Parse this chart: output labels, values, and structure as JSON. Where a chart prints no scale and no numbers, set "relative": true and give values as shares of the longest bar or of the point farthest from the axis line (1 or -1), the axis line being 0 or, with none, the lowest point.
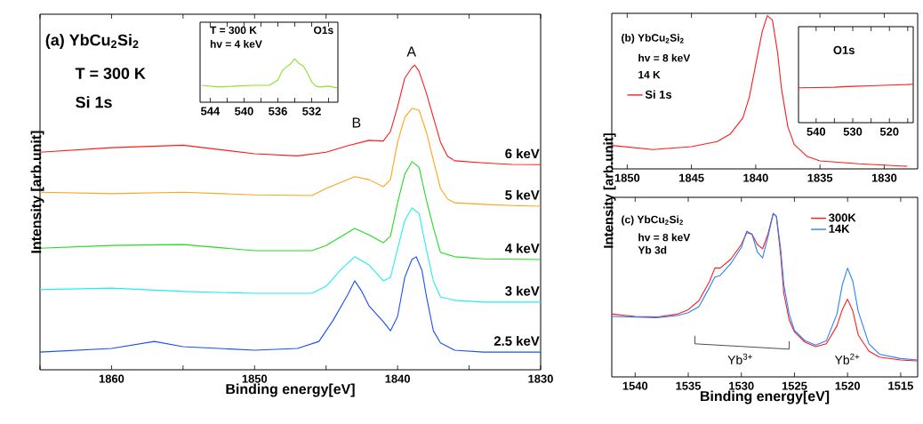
{
  "chart_data": [
    {
      "type": "line",
      "relative": true,
      "title": "(a) YbCu$_{2}$Si$_{2}$",
      "xlabel": "Binding energy[eV]",
      "ylabel": "Intensity [arb.unit]",
      "xlim": [
        1865,
        1830
      ],
      "xticks": [
        {
          "value": 1865,
          "label": null
        },
        1860,
        {
          "value": 1855,
          "label": null
        },
        1850,
        {
          "value": 1845,
          "label": null
        },
        1840,
        {
          "value": 1835,
          "label": null
        },
        1830
      ],
      "annotations": [
        "T = 300 K",
        "Si 1s",
        "A",
        "B"
      ],
      "series": [
        {
          "name": "6 keV",
          "color": "#ff1a1a",
          "x": [
            1865,
            1860,
            1855,
            1850,
            1847,
            1845,
            1843.5,
            1842,
            1841,
            1840.5,
            1840,
            1839.5,
            1839,
            1838.8,
            1838.5,
            1838,
            1837.5,
            1837,
            1836.5,
            1836,
            1834,
            1832,
            1830
          ],
          "values": [
            0.714,
            0.729,
            0.737,
            0.709,
            0.702,
            0.714,
            0.735,
            0.753,
            0.751,
            0.782,
            0.863,
            0.957,
            0.992,
            1.0,
            0.98,
            0.91,
            0.828,
            0.747,
            0.7,
            0.686,
            0.679,
            0.674,
            0.673
          ]
        },
        {
          "name": "5 keV",
          "color": "#ffa41a",
          "x": [
            1865,
            1860,
            1855,
            1850,
            1846,
            1845,
            1843,
            1842,
            1841,
            1840.5,
            1840,
            1839.5,
            1839,
            1838.5,
            1838,
            1837.5,
            1837,
            1836.5,
            1836,
            1834,
            1832,
            1830
          ],
          "values": [
            0.583,
            0.578,
            0.583,
            0.574,
            0.572,
            0.595,
            0.634,
            0.624,
            0.601,
            0.624,
            0.747,
            0.828,
            0.858,
            0.852,
            0.782,
            0.688,
            0.595,
            0.56,
            0.548,
            0.543,
            0.539,
            0.537
          ]
        },
        {
          "name": "4 keV",
          "color": "#22dd22",
          "x": [
            1865,
            1860,
            1855,
            1850,
            1846,
            1845,
            1843,
            1842,
            1841,
            1840.5,
            1840,
            1839.5,
            1839,
            1838.5,
            1838,
            1837.5,
            1837,
            1836,
            1834,
            1830
          ],
          "values": [
            0.399,
            0.408,
            0.411,
            0.391,
            0.391,
            0.408,
            0.464,
            0.443,
            0.417,
            0.438,
            0.548,
            0.642,
            0.683,
            0.665,
            0.56,
            0.467,
            0.385,
            0.371,
            0.364,
            0.362
          ]
        },
        {
          "name": "3 keV",
          "color": "#22eeee",
          "x": [
            1865,
            1860,
            1855,
            1850,
            1846,
            1845,
            1844,
            1843,
            1842,
            1841,
            1840.5,
            1840,
            1839.5,
            1839,
            1838.5,
            1838,
            1837.5,
            1837,
            1836,
            1834,
            1830
          ],
          "values": [
            0.263,
            0.268,
            0.257,
            0.251,
            0.251,
            0.274,
            0.327,
            0.371,
            0.344,
            0.292,
            0.303,
            0.397,
            0.49,
            0.531,
            0.513,
            0.397,
            0.292,
            0.239,
            0.228,
            0.222,
            0.222
          ]
        },
        {
          "name": "2.5 keV",
          "color": "#1a4dff",
          "x": [
            1865,
            1860,
            1857,
            1855,
            1850,
            1847,
            1845.5,
            1844.5,
            1843.5,
            1843,
            1842.5,
            1842,
            1841,
            1840.5,
            1840,
            1839.5,
            1839,
            1838.7,
            1838.3,
            1838,
            1837.5,
            1837,
            1836,
            1834,
            1830
          ],
          "values": [
            0.058,
            0.07,
            0.093,
            0.076,
            0.064,
            0.07,
            0.093,
            0.163,
            0.245,
            0.292,
            0.257,
            0.21,
            0.158,
            0.128,
            0.175,
            0.303,
            0.362,
            0.371,
            0.327,
            0.245,
            0.128,
            0.088,
            0.064,
            0.058,
            0.058
          ]
        }
      ]
    },
    {
      "type": "line",
      "relative": true,
      "xlim": [
        545.2,
        528.9
      ],
      "xticks": [
        544,
        {
          "value": 542,
          "label": null
        },
        540,
        {
          "value": 538,
          "label": null
        },
        536,
        {
          "value": 534,
          "label": null
        },
        532,
        {
          "value": 530,
          "label": null
        }
      ],
      "annotations": [
        "T = 300 K",
        "hv = 4 keV",
        "O1s"
      ],
      "series": [
        {
          "color": "#8fe02a",
          "x": [
            545,
            543,
            541,
            539,
            537,
            536,
            535.5,
            535,
            534.5,
            534,
            533.5,
            533,
            532.5,
            532,
            531.5,
            531,
            530,
            529
          ],
          "values": [
            0.39,
            0.35,
            0.37,
            0.39,
            0.39,
            0.51,
            0.72,
            0.81,
            0.88,
            1.0,
            0.89,
            0.84,
            0.67,
            0.47,
            0.37,
            0.35,
            0.37,
            0.33
          ]
        }
      ]
    },
    {
      "type": "line",
      "relative": true,
      "title": "(b) YbCu$_{2}$Si$_{2}$",
      "ylabel": "Intensity [arb.unit]",
      "legend": "left",
      "xlim": [
        1851.2,
        1827.4
      ],
      "xticks": [
        1850,
        1845,
        1840,
        1835,
        1830
      ],
      "annotations": [
        "hv = 8 keV",
        "14 K"
      ],
      "series": [
        {
          "name": "Si 1s",
          "color": "#ff1a1a",
          "x": [
            1851.2,
            1848,
            1845,
            1843,
            1842,
            1841,
            1840.5,
            1840,
            1839.5,
            1839.1,
            1838.7,
            1838.3,
            1838,
            1837.5,
            1837,
            1836,
            1835,
            1832,
            1828.2
          ],
          "values": [
            0.153,
            0.126,
            0.145,
            0.178,
            0.226,
            0.333,
            0.468,
            0.681,
            0.894,
            1.0,
            0.971,
            0.758,
            0.526,
            0.275,
            0.159,
            0.081,
            0.052,
            0.033,
            0.017
          ]
        }
      ]
    },
    {
      "type": "line",
      "relative": true,
      "xlim": [
        544.8,
        513.5
      ],
      "xticks": [
        540,
        {
          "value": 535,
          "label": null
        },
        530,
        {
          "value": 525,
          "label": null
        },
        520,
        {
          "value": 515,
          "label": null
        }
      ],
      "annotations": [
        "O1s"
      ],
      "series": [
        {
          "color": "#ff1a1a",
          "x": [
            544.8,
            540,
            535,
            530,
            525,
            520,
            515,
            513.5
          ],
          "values": [
            0.908,
            0.915,
            0.923,
            0.946,
            0.962,
            0.977,
            0.992,
            1.0
          ]
        }
      ]
    },
    {
      "type": "line",
      "relative": true,
      "title": "(c) YbCu$_{2}$Si$_{2}$",
      "xlabel": "Binding energy[eV]",
      "legend": "top right",
      "xlim": [
        1542.2,
        1513.4
      ],
      "xticks": [
        1540,
        1535,
        1530,
        1525,
        1520,
        1515
      ],
      "annotations": [
        "hv = 8 keV",
        "Yb 3d",
        "Yb$^{3+}$",
        "Yb$^{2+}$"
      ],
      "series": [
        {
          "name": "300K",
          "color": "#ff1a1a",
          "x": [
            1542.2,
            1540,
            1538,
            1536,
            1535,
            1534,
            1533,
            1532.5,
            1532,
            1531,
            1530,
            1529.5,
            1529,
            1528.5,
            1528,
            1527.5,
            1527,
            1526.7,
            1526.3,
            1526,
            1525.5,
            1525,
            1524,
            1523,
            1522,
            1521,
            1520.5,
            1520,
            1519.5,
            1519,
            1518,
            1517,
            1515,
            1513.4
          ],
          "values": [
            0.384,
            0.37,
            0.366,
            0.384,
            0.411,
            0.466,
            0.583,
            0.665,
            0.665,
            0.719,
            0.81,
            0.882,
            0.873,
            0.81,
            0.783,
            0.873,
            1.0,
            0.982,
            0.746,
            0.511,
            0.348,
            0.275,
            0.212,
            0.185,
            0.203,
            0.312,
            0.411,
            0.475,
            0.402,
            0.257,
            0.158,
            0.121,
            0.103,
            0.098
          ]
        },
        {
          "name": "14K",
          "color": "#2a7fff",
          "x": [
            1542.2,
            1540,
            1538,
            1536,
            1535,
            1534,
            1533,
            1532.5,
            1532,
            1531,
            1530,
            1529.5,
            1529,
            1528.5,
            1528,
            1527.5,
            1527,
            1526.7,
            1526.3,
            1526,
            1525.5,
            1525,
            1524,
            1523,
            1522,
            1521,
            1520.5,
            1520,
            1519.5,
            1519,
            1518,
            1517,
            1515,
            1513.4
          ],
          "values": [
            0.37,
            0.366,
            0.362,
            0.375,
            0.393,
            0.429,
            0.547,
            0.61,
            0.62,
            0.692,
            0.792,
            0.891,
            0.873,
            0.765,
            0.728,
            0.855,
            1.0,
            0.982,
            0.783,
            0.562,
            0.384,
            0.284,
            0.221,
            0.194,
            0.221,
            0.384,
            0.562,
            0.665,
            0.583,
            0.402,
            0.203,
            0.139,
            0.112,
            0.103
          ]
        }
      ]
    }
  ]
}
